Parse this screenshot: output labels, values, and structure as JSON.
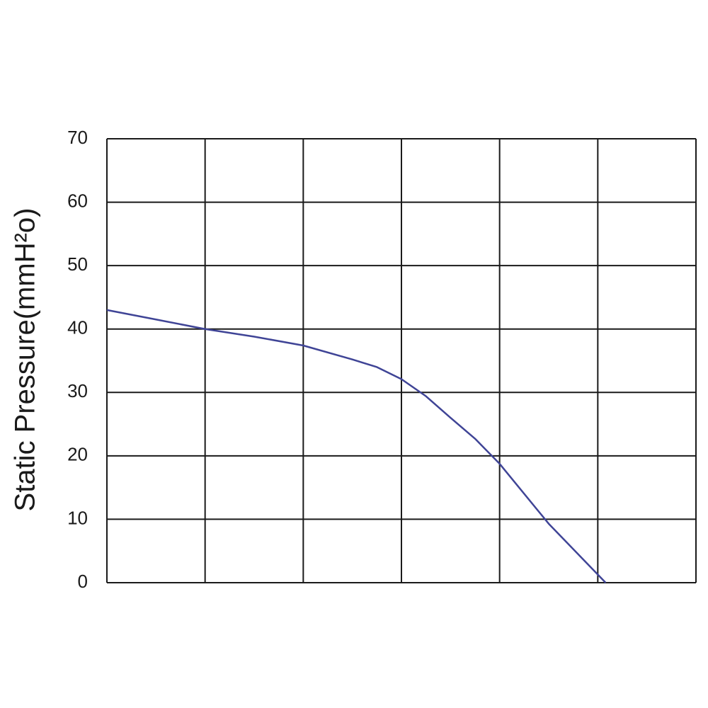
{
  "chart_data": {
    "type": "line",
    "y_label": "Static Pressure(mmH²o)",
    "x": [
      0,
      0.5,
      1,
      1.5,
      2,
      2.5,
      2.75,
      3,
      3.25,
      3.5,
      3.75,
      4,
      4.5,
      5.08
    ],
    "series": [
      {
        "color": "#3f4496",
        "values": [
          43,
          41.5,
          40,
          38.8,
          37.4,
          35.2,
          34,
          32.1,
          29.4,
          26,
          22.7,
          18.75,
          9.3,
          0
        ]
      }
    ],
    "xlim": [
      0,
      6
    ],
    "xticks": [
      0,
      1,
      2,
      3,
      4,
      5,
      6
    ],
    "xtick_labels": false,
    "ylim": [
      0,
      70
    ],
    "yticks": [
      0,
      10,
      20,
      30,
      40,
      50,
      60,
      70
    ],
    "grid": true,
    "grid_color": "#1a1a1a"
  }
}
